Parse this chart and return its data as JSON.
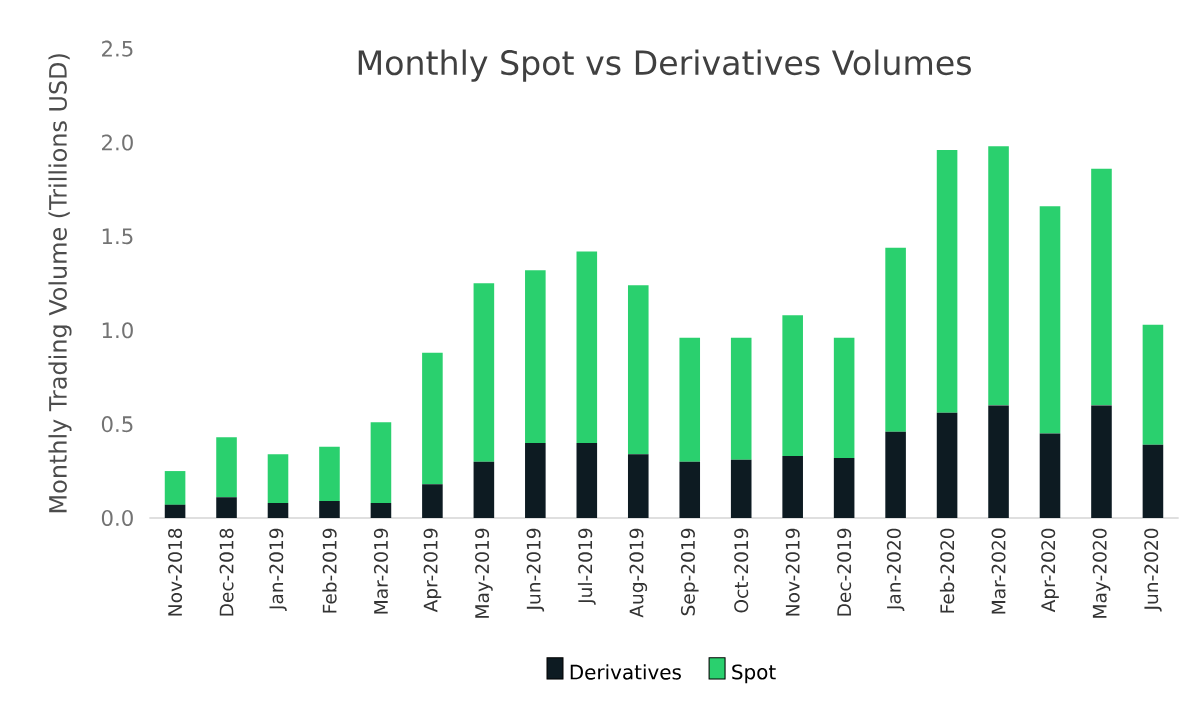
{
  "chart_data": {
    "type": "bar",
    "stacked": true,
    "title": "Monthly Spot vs Derivatives Volumes",
    "ylabel": "Monthly Trading Volume (Trillions USD)",
    "categories": [
      "Nov-2018",
      "Dec-2018",
      "Jan-2019",
      "Feb-2019",
      "Mar-2019",
      "Apr-2019",
      "May-2019",
      "Jun-2019",
      "Jul-2019",
      "Aug-2019",
      "Sep-2019",
      "Oct-2019",
      "Nov-2019",
      "Dec-2019",
      "Jan-2020",
      "Feb-2020",
      "Mar-2020",
      "Apr-2020",
      "May-2020",
      "Jun-2020"
    ],
    "series": [
      {
        "name": "Derivatives",
        "color": "#0d1b22",
        "values": [
          0.07,
          0.11,
          0.08,
          0.09,
          0.08,
          0.18,
          0.3,
          0.4,
          0.4,
          0.34,
          0.3,
          0.31,
          0.33,
          0.32,
          0.46,
          0.56,
          0.6,
          0.45,
          0.6,
          0.39
        ]
      },
      {
        "name": "Spot",
        "color": "#2ad06e",
        "values": [
          0.18,
          0.32,
          0.26,
          0.29,
          0.43,
          0.7,
          0.95,
          0.92,
          1.02,
          0.9,
          0.66,
          0.65,
          0.75,
          0.64,
          0.98,
          1.4,
          1.38,
          1.21,
          1.26,
          0.64
        ]
      }
    ],
    "ylim": [
      0,
      2.5
    ],
    "yticks": [
      {
        "value": 0,
        "label": "0.0"
      },
      {
        "value": 0.5,
        "label": "0.5"
      },
      {
        "value": 1,
        "label": "1.0"
      },
      {
        "value": 1.5,
        "label": "1.5"
      },
      {
        "value": 2,
        "label": "2.0"
      },
      {
        "value": 2.5,
        "label": "2.5"
      }
    ],
    "grid": false,
    "legend": "bottom"
  }
}
